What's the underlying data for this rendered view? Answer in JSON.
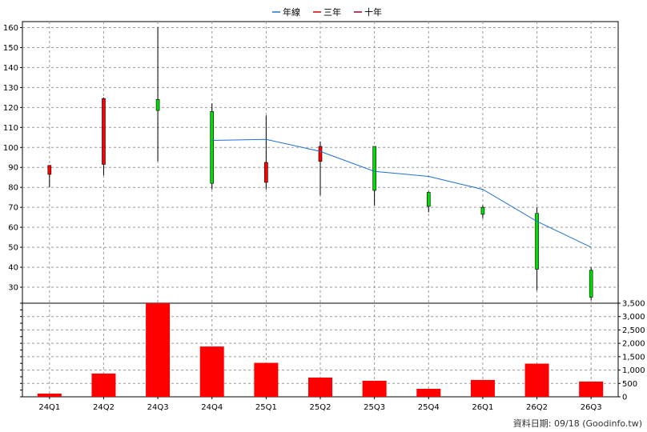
{
  "footer": {
    "source_label": "資料日期: 09/18  (Goodinfo.tw)"
  },
  "colors": {
    "up": "#ff0000",
    "down": "#00dd00",
    "ma_line": "#1f6fd0",
    "ma3_legend": "#cc0000",
    "ma10_legend": "#990033",
    "volume": "#ff0000",
    "grid": "#9a9a9a"
  },
  "chart_data": {
    "type": "candlestick",
    "legend": [
      {
        "label": "年線",
        "color": "#1f6fd0"
      },
      {
        "label": "三年",
        "color": "#cc0000"
      },
      {
        "label": "十年",
        "color": "#990033"
      }
    ],
    "legend_position": "top-center",
    "grid": true,
    "categories": [
      "24Q1",
      "24Q2",
      "24Q3",
      "24Q4",
      "25Q1",
      "25Q2",
      "25Q3",
      "25Q4",
      "26Q1",
      "26Q2",
      "26Q3"
    ],
    "price_axis": {
      "ylim": [
        22,
        163
      ],
      "ticks": [
        30,
        40,
        50,
        60,
        70,
        80,
        90,
        100,
        110,
        120,
        130,
        140,
        150,
        160
      ]
    },
    "volume_axis": {
      "ylim": [
        0,
        3500
      ],
      "ticks": [
        0,
        500,
        1000,
        1500,
        2000,
        2500,
        3000,
        3500
      ],
      "tick_labels": [
        "0",
        "500",
        "1,000",
        "1,500",
        "2,000",
        "2,500",
        "3,000",
        "3,500"
      ]
    },
    "candles": [
      {
        "open": 86.5,
        "close": 91,
        "high": 91,
        "low": 80
      },
      {
        "open": 91.5,
        "close": 124.5,
        "high": 125,
        "low": 86
      },
      {
        "open": 124,
        "close": 118.5,
        "high": 160,
        "low": 93
      },
      {
        "open": 118,
        "close": 82,
        "high": 122,
        "low": 79
      },
      {
        "open": 82.5,
        "close": 92.5,
        "high": 116,
        "low": 79
      },
      {
        "open": 93,
        "close": 100.5,
        "high": 103,
        "low": 76
      },
      {
        "open": 100.5,
        "close": 78.5,
        "high": 100.5,
        "low": 71
      },
      {
        "open": 77.5,
        "close": 70.5,
        "high": 78,
        "low": 67.5
      },
      {
        "open": 70,
        "close": 66.5,
        "high": 71,
        "low": 64.5
      },
      {
        "open": 67,
        "close": 39,
        "high": 70,
        "low": 28.5
      },
      {
        "open": 38.5,
        "close": 25,
        "high": 40,
        "low": 23.5
      }
    ],
    "ma_line": {
      "name": "年線",
      "points": [
        {
          "x": "24Q4",
          "y": 103.5
        },
        {
          "x": "25Q1",
          "y": 104
        },
        {
          "x": "25Q2",
          "y": 98
        },
        {
          "x": "25Q3",
          "y": 88
        },
        {
          "x": "25Q4",
          "y": 85.5
        },
        {
          "x": "26Q1",
          "y": 79
        },
        {
          "x": "26Q2",
          "y": 63
        },
        {
          "x": "26Q3",
          "y": 50
        }
      ]
    },
    "volume": [
      120,
      870,
      3520,
      1880,
      1270,
      720,
      600,
      300,
      630,
      1240,
      570
    ]
  }
}
